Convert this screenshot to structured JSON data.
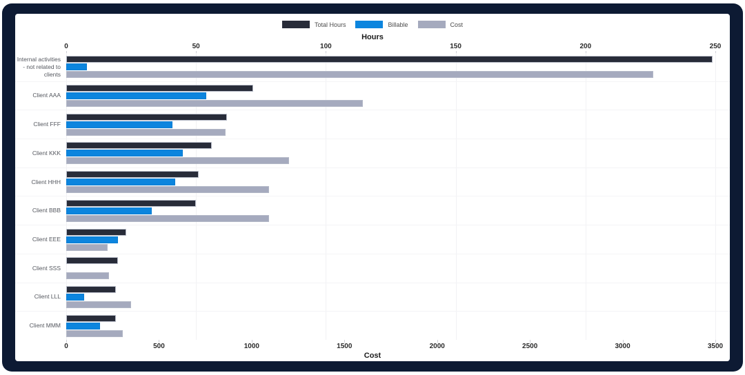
{
  "frame": {
    "background": "#0d1a33",
    "card_background": "#ffffff"
  },
  "legend": {
    "items": [
      {
        "label": "Total Hours",
        "color": "#282c39"
      },
      {
        "label": "Billable",
        "color": "#0c85de"
      },
      {
        "label": "Cost",
        "color": "#a5aabe"
      }
    ]
  },
  "top_axis": {
    "title": "Hours",
    "ticks": [
      "0",
      "50",
      "100",
      "150",
      "200",
      "250"
    ],
    "min": 0,
    "max": 250
  },
  "bottom_axis": {
    "title": "Cost",
    "ticks": [
      "0",
      "500",
      "1000",
      "1500",
      "2000",
      "2500",
      "3000",
      "3500"
    ],
    "min": 0,
    "max": 3500
  },
  "chart_data": {
    "type": "bar",
    "orientation": "horizontal",
    "title": "",
    "xlabel_top": "Hours",
    "xlabel_bottom": "Cost",
    "grid": true,
    "legend_position": "top-center",
    "categories": [
      "Internal activities - not related to clients",
      "Client AAA",
      "Client FFF",
      "Client KKK",
      "Client HHH",
      "Client BBB",
      "Client EEE",
      "Client SSS",
      "Client LLL",
      "Client MMM"
    ],
    "series": [
      {
        "name": "Total Hours",
        "axis": "hours",
        "color": "#282c39",
        "axis_range": [
          0,
          250
        ],
        "values": [
          249,
          72,
          62,
          56,
          51,
          50,
          23,
          20,
          19,
          19
        ]
      },
      {
        "name": "Billable",
        "axis": "hours",
        "color": "#0c85de",
        "axis_range": [
          0,
          250
        ],
        "values": [
          8,
          54,
          41,
          45,
          42,
          33,
          20,
          0,
          7,
          13
        ]
      },
      {
        "name": "Cost",
        "axis": "cost",
        "color": "#a5aabe",
        "axis_range": [
          0,
          3500
        ],
        "values": [
          3165,
          1600,
          860,
          1200,
          1095,
          1095,
          225,
          230,
          350,
          305
        ]
      }
    ]
  }
}
